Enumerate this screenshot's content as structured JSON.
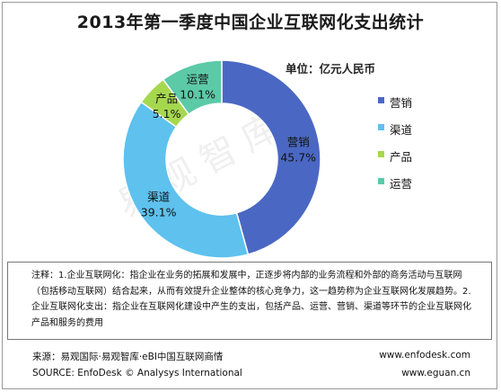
{
  "chart_data": {
    "type": "pie",
    "donut": true,
    "title": "2013年第一季度中国企业互联网化支出统计",
    "unit": "单位：亿元人民币",
    "categories": [
      "营销",
      "渠道",
      "产品",
      "运营"
    ],
    "values": [
      45.7,
      39.1,
      5.1,
      10.1
    ],
    "labels": [
      "45.7%",
      "39.1%",
      "5.1%",
      "10.1%"
    ],
    "colors": [
      "#4a68c3",
      "#5ec1ee",
      "#a6d84e",
      "#5cc9a7"
    ],
    "legend_position": "right"
  },
  "watermark": "易观智库",
  "note": "注释：1.企业互联网化：指企业在业务的拓展和发展中，正逐步将内部的业务流程和外部的商务活动与互联网（包括移动互联网）结合起来，从而有效提升企业整体的核心竞争力，这一趋势称为企业互联网化发展趋势。2.企业互联网化支出：指企业在互联网化建设中产生的支出，包括产品、运营、营销、渠道等环节的企业互联网化产品和服务的费用",
  "source": {
    "line1": "来源：易观国际·易观智库·eBI中国互联网商情",
    "line2": "SOURCE: EnfoDesk © Analysys International",
    "url1": "www.enfodesk.com",
    "url2": "www.eguan.cn"
  }
}
